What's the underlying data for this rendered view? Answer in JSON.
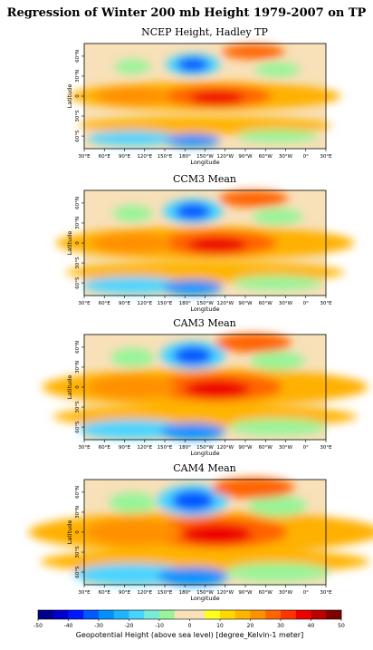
{
  "title": "Regression of Winter 200 mb Height 1979-2007 on TP",
  "panels": [
    {
      "title": "NCEP Height, Hadley TP",
      "xlabel": "Longitude",
      "ylabel": "Latitude"
    },
    {
      "title": "CCM3 Mean",
      "xlabel": "Longitude",
      "ylabel": "Latitude"
    },
    {
      "title": "CAM3 Mean",
      "xlabel": "Longitude",
      "ylabel": "Latitude"
    },
    {
      "title": "CAM4 Mean",
      "xlabel": "Longitude",
      "ylabel": "Latitude"
    }
  ],
  "lon_ticks": [
    "30°E",
    "60°E",
    "90°E",
    "120°E",
    "150°E",
    "180°",
    "150°W",
    "120°W",
    "90°W",
    "60°W",
    "30°W",
    "0°",
    "30°E"
  ],
  "lat_ticks": [
    "60°N",
    "30°N",
    "0",
    "30°S",
    "60°S"
  ],
  "colorbar": {
    "label": "Geopotential Height (above sea level) [degree_Kelvin-1 meter]",
    "ticks": [
      -50,
      -40,
      -30,
      -20,
      -10,
      0,
      10,
      20,
      30,
      40,
      50
    ],
    "colors": [
      "#00008b",
      "#0000cd",
      "#0018ff",
      "#0058ff",
      "#0090ff",
      "#20b4ff",
      "#48d4ff",
      "#78ecd8",
      "#98f498",
      "#f8e0b8",
      "#f8e0b8",
      "#ffff20",
      "#ffd800",
      "#ffb400",
      "#ff9000",
      "#ff6400",
      "#ff3400",
      "#ee0000",
      "#bb0000",
      "#800000"
    ]
  }
}
